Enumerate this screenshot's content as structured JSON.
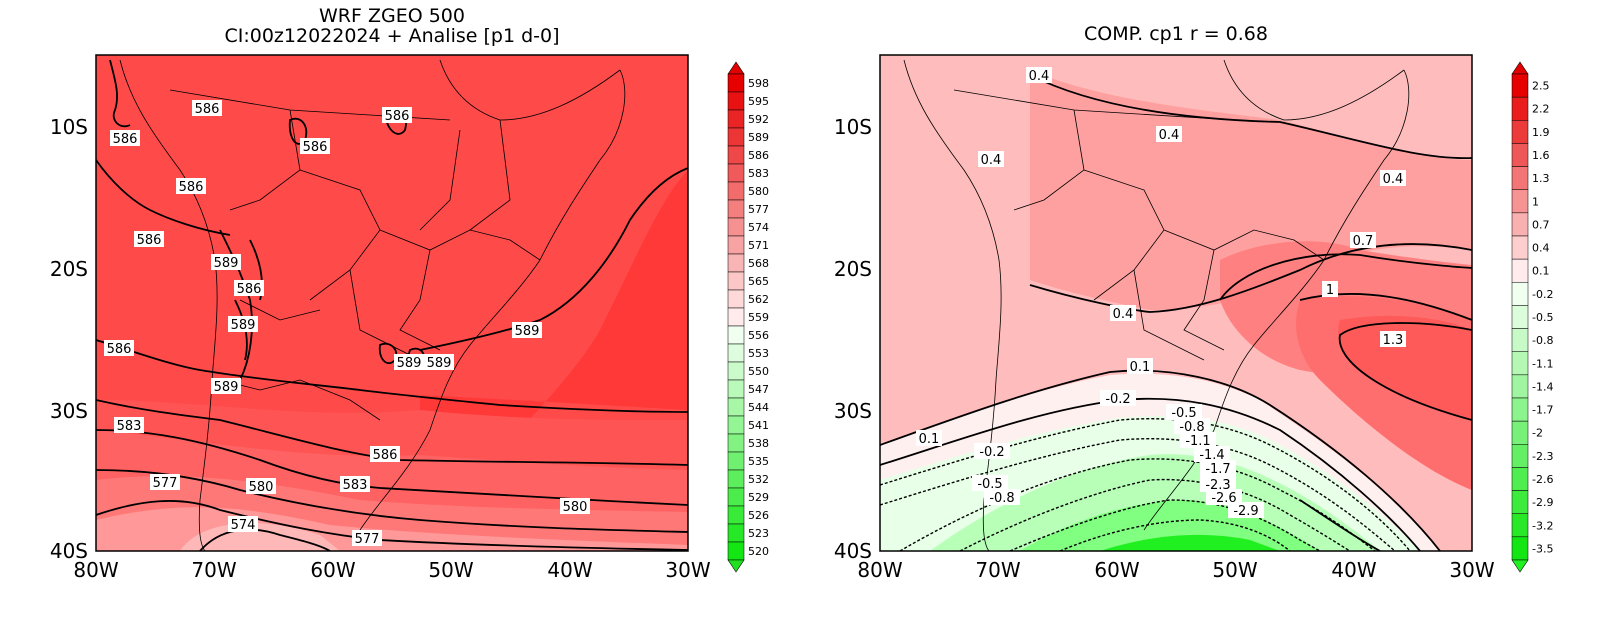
{
  "left_panel": {
    "title_line1": "WRF ZGEO 500",
    "title_line2": "CI:00z12022024 + Analise  [p1 d-0]",
    "x_ticks": [
      "80W",
      "70W",
      "60W",
      "50W",
      "40W",
      "30W"
    ],
    "y_ticks": [
      "10S",
      "20S",
      "30S",
      "40S"
    ],
    "contour_labels": [
      "586",
      "586",
      "586",
      "586",
      "586",
      "589",
      "586",
      "589",
      "586",
      "589",
      "589",
      "589",
      "586",
      "589",
      "583",
      "577",
      "580",
      "586",
      "583",
      "574",
      "577",
      "580"
    ],
    "colorbar_labels": [
      "598",
      "595",
      "592",
      "589",
      "586",
      "583",
      "580",
      "577",
      "574",
      "571",
      "568",
      "565",
      "562",
      "559",
      "556",
      "553",
      "550",
      "547",
      "544",
      "541",
      "538",
      "535",
      "532",
      "529",
      "526",
      "523",
      "520"
    ]
  },
  "right_panel": {
    "title": "COMP. cp1  r =  0.68",
    "x_ticks": [
      "80W",
      "70W",
      "60W",
      "50W",
      "40W",
      "30W"
    ],
    "y_ticks": [
      "10S",
      "20S",
      "30S",
      "40S"
    ],
    "contour_labels": [
      "0.4",
      "0.4",
      "0.4",
      "0.4",
      "0.7",
      "1",
      "0.4",
      "1.3",
      "0.1",
      "-0.2",
      "-0.5",
      "-0.8",
      "-1.1",
      "-1.4",
      "-1.7",
      "-2.3",
      "-2.6",
      "-2.9",
      "0.1",
      "-0.2",
      "-0.5",
      "-0.8"
    ],
    "colorbar_labels": [
      "2.5",
      "2.2",
      "1.9",
      "1.6",
      "1.3",
      "1",
      "0.7",
      "0.4",
      "0.1",
      "-0.2",
      "-0.5",
      "-0.8",
      "-1.1",
      "-1.4",
      "-1.7",
      "-2",
      "-2.3",
      "-2.6",
      "-2.9",
      "-3.2",
      "-3.5"
    ]
  },
  "colors": {
    "left_bg": "#ff4a4a",
    "left_deep": "#ff3838",
    "left_mid": "#ff6a6a",
    "left_light": "#ff9898",
    "left_pale": "#ffb8b8",
    "right_pale": "#ffbcbc",
    "right_mid": "#ffa0a0",
    "right_strong": "#ff7070",
    "right_deep": "#ff5050",
    "right_white": "#fff0f0",
    "green_1": "#e8ffe8",
    "green_2": "#b8ffb8",
    "green_3": "#80ff80",
    "green_4": "#20f020"
  }
}
